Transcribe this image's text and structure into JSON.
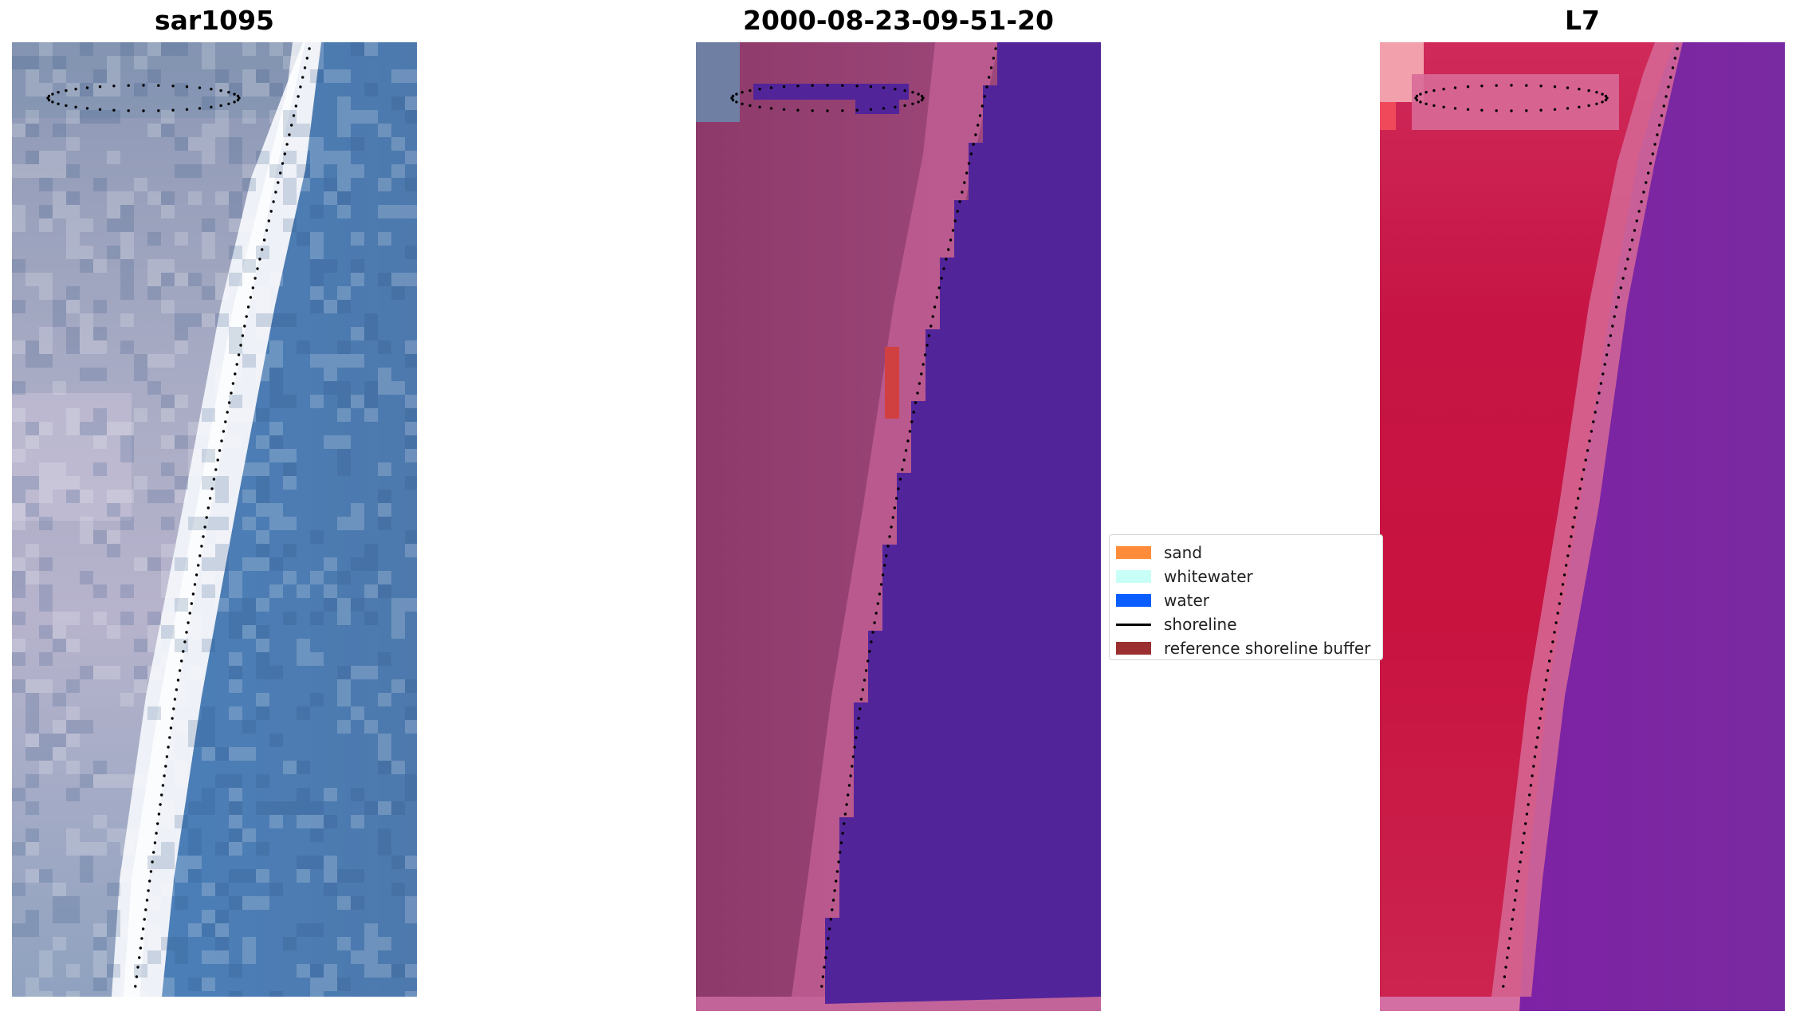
{
  "panels": [
    {
      "title": "sar1095",
      "kind": "rgb-image"
    },
    {
      "title": "2000-08-23-09-51-20",
      "kind": "classification-overlay"
    },
    {
      "title": "L7",
      "kind": "index-image"
    }
  ],
  "legend": {
    "items": [
      {
        "label": "sand",
        "type": "patch",
        "color": "#ff8c3a"
      },
      {
        "label": "whitewater",
        "type": "patch",
        "color": "#c8fff6"
      },
      {
        "label": "water",
        "type": "patch",
        "color": "#0a5eff"
      },
      {
        "label": "shoreline",
        "type": "line",
        "color": "#000000"
      },
      {
        "label": "reference shoreline buffer",
        "type": "patch",
        "color": "#9b2f2f"
      }
    ]
  },
  "colors": {
    "sea_rgb": "#4a7cb4",
    "beach_white": "#f2f4f8",
    "land_rgb": "#aab0c8",
    "class_land": "#94406f",
    "class_water": "#52249a",
    "class_beach": "#c25f95",
    "buffer": "#d04040",
    "index_land": "#c8163e",
    "index_water": "#7a1ea0",
    "index_beach": "#d66a96"
  }
}
